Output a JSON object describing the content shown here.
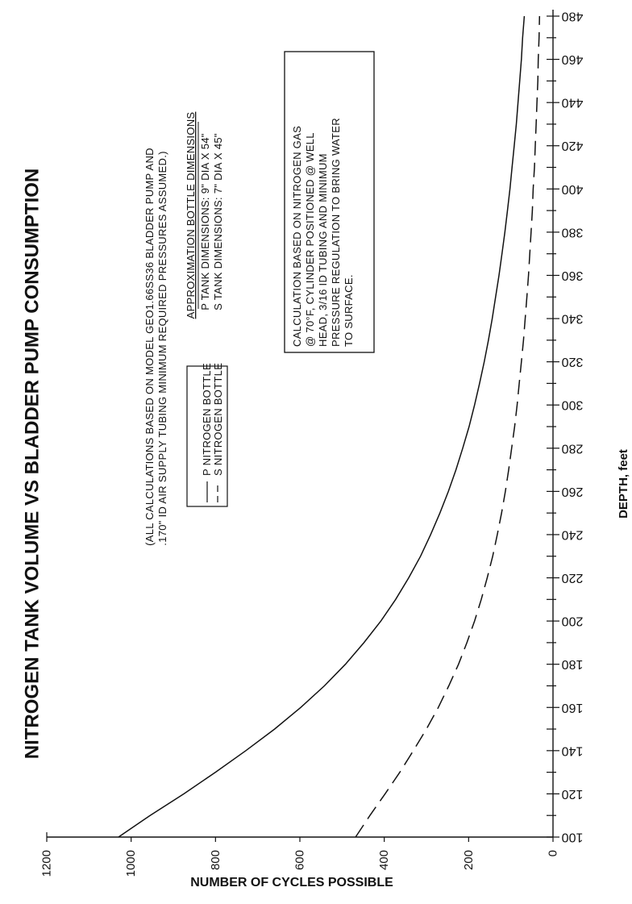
{
  "chart_data": {
    "type": "line",
    "orientation": "rotated-90-clockwise",
    "title": "NITROGEN TANK VOLUME VS BLADDER PUMP CONSUMPTION",
    "xlabel": "DEPTH, feet",
    "ylabel": "NUMBER OF CYCLES POSSIBLE",
    "xlim": [
      100,
      480
    ],
    "ylim": [
      0,
      1200
    ],
    "x_ticks": [
      "100",
      "120",
      "140",
      "160",
      "180",
      "200",
      "220",
      "240",
      "260",
      "280",
      "300",
      "320",
      "340",
      "360",
      "380",
      "400",
      "420",
      "440",
      "460",
      "480"
    ],
    "y_ticks": [
      "0",
      "200",
      "400",
      "600",
      "800",
      "1000",
      "1200"
    ],
    "grid": false,
    "x": [
      100,
      110,
      120,
      130,
      140,
      150,
      160,
      170,
      180,
      190,
      200,
      210,
      220,
      230,
      240,
      250,
      260,
      270,
      280,
      290,
      300,
      310,
      320,
      330,
      340,
      350,
      360,
      370,
      380,
      390,
      400,
      410,
      420,
      430,
      440,
      450,
      460,
      470,
      480
    ],
    "series": [
      {
        "name": "P NITROGEN BOTTLE",
        "line_style": "solid",
        "values": [
          1030,
          955,
          875,
          800,
          728,
          660,
          598,
          542,
          492,
          448,
          408,
          373,
          342,
          314,
          290,
          268,
          248,
          230,
          214,
          199,
          186,
          174,
          163,
          153,
          144,
          136,
          128,
          121,
          114,
          108,
          102,
          97,
          92,
          87,
          83,
          79,
          75,
          72,
          68
        ]
      },
      {
        "name": "S NITROGEN BOTTLE",
        "line_style": "dashed",
        "values": [
          468,
          434,
          398,
          363,
          331,
          300,
          272,
          247,
          224,
          204,
          186,
          170,
          156,
          143,
          132,
          122,
          113,
          105,
          98,
          91,
          85,
          80,
          75,
          70,
          66,
          62,
          58,
          55,
          52,
          49,
          47,
          44,
          42,
          40,
          38,
          36,
          35,
          33,
          32
        ]
      }
    ],
    "legend": {
      "placement": "top-center",
      "entries": [
        "P NITROGEN BOTTLE",
        "S NITROGEN BOTTLE"
      ]
    },
    "annotations": {
      "note_lines": [
        "(ALL CALCULATIONS BASED ON MODEL GEO1.66SS36 BLADDER PUMP AND",
        ".170\" ID AIR SUPPLY TUBING MINIMUM REQUIRED PRESSURES ASSUMED.)"
      ],
      "dimensions_heading": "APPROXIMATION BOTTLE DIMENSIONS",
      "dimensions_lines": [
        "P TANK DIMENSIONS: 9\" DIA X 54\"",
        "S TANK DIMENSIONS: 7\" DIA X 45\""
      ],
      "calc_box_lines": [
        "CALCULATION BASED ON NITROGEN GAS",
        "@ 70°F, CYLINDER POSITIONED @ WELL",
        "HEAD, 3/16 ID TUBING AND MINIMUM",
        "PRESSURE REGULATION TO BRING WATER",
        "TO SURFACE."
      ]
    }
  }
}
